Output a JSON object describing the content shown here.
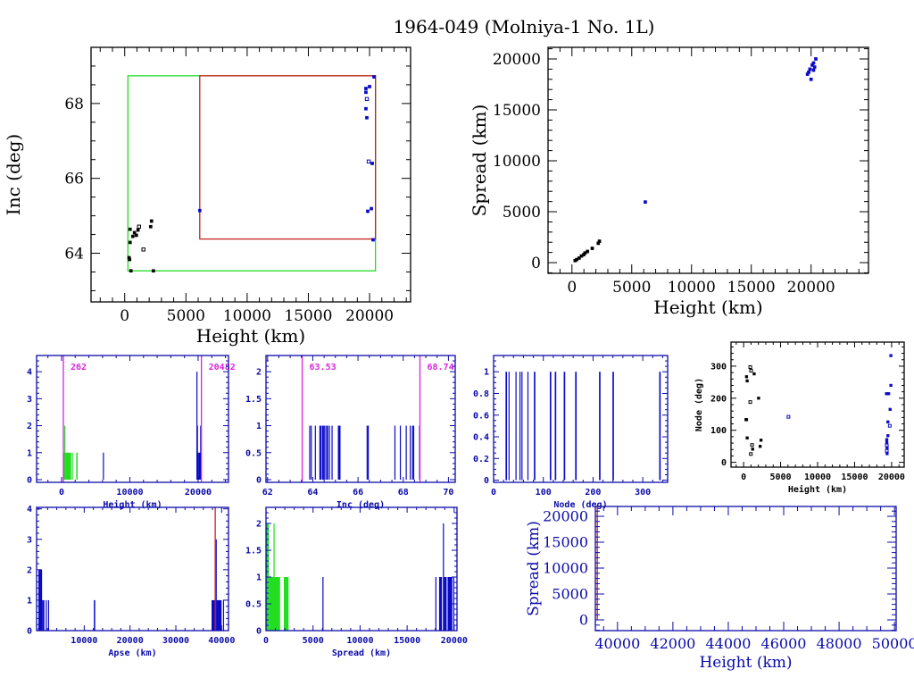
{
  "title": "1964-049 (Molniya-1 No. 1L)",
  "colors": {
    "k": "#000000",
    "b": "#0a0ac8",
    "g": "#22dd22",
    "r": "#c82020",
    "m": "#dd22dd",
    "axis_small": "#0a0aaa"
  },
  "chart_data": [
    {
      "id": "inc-vs-height",
      "type": "scatter",
      "xlabel": "Height (km)",
      "ylabel": "Inc (deg)",
      "xlim": [
        -2750,
        23350
      ],
      "ylim": [
        62.7,
        69.5
      ],
      "xticks": [
        0,
        5000,
        10000,
        15000,
        20000
      ],
      "xtick_labels": [
        "0",
        "5000",
        "10000",
        "15000",
        "20000"
      ],
      "xminor": 1000,
      "yticks": [
        64,
        66,
        68
      ],
      "ytick_labels": [
        "64",
        "66",
        "68"
      ],
      "yminor": 0.5,
      "rects": [
        {
          "x0": 262,
          "x1": 20482,
          "y0": 63.53,
          "y1": 68.74,
          "color": "g"
        },
        {
          "x0": 6130,
          "x1": 20482,
          "y0": 64.38,
          "y1": 68.74,
          "color": "r"
        }
      ],
      "points": [
        [
          440,
          64.64,
          "k",
          0
        ],
        [
          800,
          64.55,
          "k",
          0
        ],
        [
          660,
          64.45,
          "k",
          0
        ],
        [
          950,
          64.48,
          "k",
          0
        ],
        [
          1090,
          64.62,
          "k",
          0
        ],
        [
          1170,
          64.71,
          "k",
          1
        ],
        [
          2120,
          64.71,
          "k",
          0
        ],
        [
          2190,
          64.86,
          "k",
          0
        ],
        [
          1530,
          64.1,
          "k",
          1
        ],
        [
          440,
          64.29,
          "k",
          0
        ],
        [
          360,
          63.88,
          "k",
          0
        ],
        [
          400,
          63.83,
          "k",
          0
        ],
        [
          510,
          63.53,
          "k",
          0
        ],
        [
          2340,
          63.53,
          "k",
          0
        ],
        [
          6130,
          65.14,
          "b",
          0
        ],
        [
          20360,
          68.71,
          "b",
          0
        ],
        [
          20000,
          68.45,
          "b",
          0
        ],
        [
          19700,
          68.4,
          "b",
          0
        ],
        [
          19700,
          68.3,
          "b",
          0
        ],
        [
          19780,
          68.12,
          "b",
          1
        ],
        [
          19700,
          67.86,
          "b",
          0
        ],
        [
          19780,
          67.62,
          "b",
          0
        ],
        [
          19930,
          66.45,
          "b",
          1
        ],
        [
          20220,
          66.4,
          "b",
          0
        ],
        [
          19850,
          65.12,
          "b",
          0
        ],
        [
          20150,
          65.19,
          "b",
          0
        ],
        [
          20290,
          64.36,
          "b",
          0
        ]
      ]
    },
    {
      "id": "spread-vs-height",
      "type": "scatter",
      "xlabel": "Height (km)",
      "ylabel": "Spread (km)",
      "xlim": [
        -2000,
        24800
      ],
      "ylim": [
        -1050,
        21140
      ],
      "xticks": [
        0,
        5000,
        10000,
        15000,
        20000
      ],
      "xtick_labels": [
        "0",
        "5000",
        "10000",
        "15000",
        "20000"
      ],
      "xminor": 1000,
      "yticks": [
        0,
        5000,
        10000,
        15000,
        20000
      ],
      "ytick_labels": [
        "0",
        "5000",
        "10000",
        "15000",
        "20000"
      ],
      "yminor": 1000,
      "points": [
        [
          262,
          200,
          "k",
          0
        ],
        [
          400,
          300,
          "k",
          0
        ],
        [
          600,
          450,
          "k",
          0
        ],
        [
          800,
          650,
          "k",
          0
        ],
        [
          1000,
          800,
          "k",
          0
        ],
        [
          1100,
          950,
          "k",
          0
        ],
        [
          1300,
          1100,
          "k",
          0
        ],
        [
          1700,
          1400,
          "k",
          0
        ],
        [
          2200,
          1900,
          "k",
          0
        ],
        [
          2300,
          2100,
          "k",
          0
        ],
        [
          6130,
          5950,
          "b",
          0
        ],
        [
          19800,
          18700,
          "b",
          0
        ],
        [
          19900,
          19000,
          "b",
          0
        ],
        [
          20100,
          19400,
          "b",
          0
        ],
        [
          20000,
          18000,
          "b",
          0
        ],
        [
          20200,
          19600,
          "b",
          0
        ],
        [
          20400,
          20000,
          "b",
          0
        ],
        [
          19700,
          18500,
          "b",
          0
        ],
        [
          20300,
          19200,
          "b",
          0
        ],
        [
          20200,
          18900,
          "b",
          0
        ]
      ]
    },
    {
      "id": "height-histogram",
      "type": "bar",
      "xlabel": "Height (km)",
      "ylabel": "",
      "xlim": [
        -3660,
        24450
      ],
      "ylim": [
        -0.1,
        4.6
      ],
      "xticks": [
        0,
        10000,
        20000
      ],
      "xtick_labels": [
        "0",
        "10000",
        "20000"
      ],
      "xminor": 2000,
      "yticks": [
        0,
        1,
        2,
        3,
        4
      ],
      "ytick_labels": [
        "0",
        "1",
        "2",
        "3",
        "4"
      ],
      "yminor": 0.2,
      "bars": [
        [
          262,
          550,
          1,
          "g"
        ],
        [
          400,
          520,
          2,
          "g"
        ],
        [
          550,
          1400,
          1,
          "g"
        ],
        [
          1500,
          1580,
          1,
          "g"
        ],
        [
          2150,
          2350,
          1,
          "g"
        ],
        [
          6050,
          6200,
          1,
          "b"
        ],
        [
          19750,
          19820,
          4,
          "b"
        ],
        [
          19820,
          19900,
          2,
          "b"
        ],
        [
          19900,
          20050,
          1,
          "b"
        ],
        [
          20050,
          20350,
          1,
          "b"
        ],
        [
          20300,
          20380,
          2,
          "b"
        ]
      ],
      "vlines": [
        {
          "x": 262,
          "color": "m",
          "label": "262"
        },
        {
          "x": 20482,
          "color": "m",
          "label": "20482"
        }
      ]
    },
    {
      "id": "inc-histogram",
      "type": "bar",
      "xlabel": "Inc (deg)",
      "ylabel": "",
      "xlim": [
        61.93,
        70.3
      ],
      "ylim": [
        -0.05,
        2.3
      ],
      "xticks": [
        62,
        64,
        66,
        68,
        70
      ],
      "xtick_labels": [
        "62",
        "64",
        "66",
        "68",
        "70"
      ],
      "xminor": 0.5,
      "yticks": [
        0,
        0.5,
        1,
        1.5,
        2
      ],
      "ytick_labels": [
        "0",
        "0.5",
        "1",
        "1.5",
        "2"
      ],
      "yminor": 0.1,
      "bars": [
        [
          63.84,
          63.87,
          1,
          "b"
        ],
        [
          63.91,
          63.94,
          1,
          "b"
        ],
        [
          64.09,
          64.12,
          1,
          "b"
        ],
        [
          64.29,
          64.33,
          1,
          "b"
        ],
        [
          64.34,
          64.38,
          1,
          "b"
        ],
        [
          64.41,
          64.44,
          1,
          "b"
        ],
        [
          64.46,
          64.49,
          1,
          "b"
        ],
        [
          64.51,
          64.54,
          1,
          "b"
        ],
        [
          64.59,
          64.62,
          1,
          "b"
        ],
        [
          64.63,
          64.66,
          1,
          "b"
        ],
        [
          64.71,
          64.74,
          1,
          "b"
        ],
        [
          64.83,
          64.86,
          1,
          "b"
        ],
        [
          65.11,
          65.15,
          1,
          "b"
        ],
        [
          65.14,
          65.17,
          1,
          "b"
        ],
        [
          65.18,
          65.21,
          1,
          "b"
        ],
        [
          66.38,
          66.42,
          1,
          "b"
        ],
        [
          66.43,
          66.47,
          1,
          "b"
        ],
        [
          67.61,
          67.64,
          1,
          "b"
        ],
        [
          67.85,
          67.88,
          1,
          "b"
        ],
        [
          68.11,
          68.14,
          1,
          "b"
        ],
        [
          68.29,
          68.32,
          1,
          "b"
        ],
        [
          68.39,
          68.42,
          1,
          "b"
        ],
        [
          68.44,
          68.47,
          1,
          "b"
        ],
        [
          68.7,
          68.73,
          1,
          "b"
        ]
      ],
      "vlines": [
        {
          "x": 63.53,
          "color": "m",
          "label": "63.53"
        },
        {
          "x": 68.74,
          "color": "m",
          "label": "68.74"
        }
      ]
    },
    {
      "id": "node-histogram",
      "type": "bar",
      "xlabel": "Node (deg)",
      "ylabel": "",
      "xlim": [
        0,
        350
      ],
      "ylim": [
        -0.02,
        1.15
      ],
      "xticks": [
        0,
        100,
        200,
        300
      ],
      "xtick_labels": [
        "0",
        "100",
        "200",
        "300"
      ],
      "xminor": 20,
      "yticks": [
        0,
        0.2,
        0.4,
        0.6,
        0.8,
        1
      ],
      "ytick_labels": [
        "0",
        "0.2",
        "0.4",
        "0.6",
        "0.8",
        "1"
      ],
      "yminor": 0.05,
      "bars": [
        [
          24,
          27,
          1,
          "b"
        ],
        [
          30,
          32,
          1,
          "b"
        ],
        [
          44,
          46,
          1,
          "b"
        ],
        [
          52,
          54,
          1,
          "b"
        ],
        [
          56,
          58,
          1,
          "b"
        ],
        [
          68,
          70,
          1,
          "b"
        ],
        [
          81,
          84,
          1,
          "b"
        ],
        [
          113,
          116,
          1,
          "b"
        ],
        [
          123,
          126,
          1,
          "b"
        ],
        [
          141,
          144,
          1,
          "b"
        ],
        [
          164,
          167,
          1,
          "b"
        ],
        [
          212,
          215,
          1,
          "b"
        ],
        [
          239,
          242,
          1,
          "b"
        ],
        [
          333,
          336,
          1,
          "b"
        ]
      ]
    },
    {
      "id": "node-vs-height",
      "type": "scatter",
      "xlabel": "Height (km)",
      "ylabel": "Node (deg)",
      "xlim": [
        -1700,
        21700
      ],
      "ylim": [
        -15,
        375
      ],
      "xticks": [
        0,
        5000,
        10000,
        15000,
        20000
      ],
      "xtick_labels": [
        "0",
        "5000",
        "10000",
        "15000",
        "20000"
      ],
      "xminor": 1000,
      "yticks": [
        0,
        100,
        200,
        300
      ],
      "ytick_labels": [
        "0",
        "100",
        "200",
        "300"
      ],
      "yminor": 20,
      "points": [
        [
          325,
          133,
          "k",
          0
        ],
        [
          400,
          133,
          "k",
          0
        ],
        [
          900,
          297,
          "k",
          1
        ],
        [
          1016,
          286,
          "k",
          1
        ],
        [
          400,
          267,
          "k",
          0
        ],
        [
          480,
          254,
          "k",
          0
        ],
        [
          1430,
          276,
          "k",
          0
        ],
        [
          2030,
          200,
          "k",
          0
        ],
        [
          900,
          188,
          "k",
          1
        ],
        [
          480,
          76,
          "k",
          0
        ],
        [
          1140,
          54,
          "k",
          1
        ],
        [
          1220,
          41,
          "k",
          0
        ],
        [
          980,
          26,
          "k",
          1
        ],
        [
          2230,
          50,
          "k",
          0
        ],
        [
          2350,
          69,
          "k",
          0
        ],
        [
          6060,
          142,
          "b",
          1
        ],
        [
          19300,
          214,
          "b",
          0
        ],
        [
          19600,
          214,
          "b",
          0
        ],
        [
          19900,
          333,
          "b",
          0
        ],
        [
          19900,
          240,
          "b",
          0
        ],
        [
          19800,
          165,
          "b",
          0
        ],
        [
          19500,
          126,
          "b",
          0
        ],
        [
          19750,
          114,
          "b",
          1
        ],
        [
          19500,
          83,
          "b",
          0
        ],
        [
          19350,
          71,
          "b",
          0
        ],
        [
          19350,
          62,
          "b",
          0
        ],
        [
          19350,
          53,
          "b",
          1
        ],
        [
          19400,
          45,
          "b",
          0
        ],
        [
          19350,
          36,
          "b",
          1
        ],
        [
          19400,
          27,
          "b",
          0
        ]
      ]
    },
    {
      "id": "apse-histogram",
      "type": "bar",
      "xlabel": "Apse (km)",
      "ylabel": "",
      "xlim": [
        -400,
        41500
      ],
      "ylim": [
        0,
        4.05
      ],
      "xticks": [
        10000,
        20000,
        30000,
        40000
      ],
      "xtick_labels": [
        "10000",
        "20000",
        "30000",
        "40000"
      ],
      "xminor": 2000,
      "yticks": [
        0,
        1,
        2,
        3,
        4
      ],
      "ytick_labels": [
        "0",
        "1",
        "2",
        "3",
        "4"
      ],
      "yminor": 0.2,
      "bars": [
        [
          0,
          800,
          2,
          "b"
        ],
        [
          800,
          1300,
          1,
          "b"
        ],
        [
          1600,
          1700,
          1,
          "b"
        ],
        [
          2100,
          2200,
          1,
          "b"
        ],
        [
          12100,
          12400,
          1,
          "b"
        ],
        [
          37800,
          38500,
          1,
          "b"
        ],
        [
          38500,
          38700,
          1,
          "b"
        ],
        [
          38700,
          38900,
          3,
          "b"
        ],
        [
          38900,
          40000,
          1,
          "b"
        ],
        [
          40300,
          40400,
          1,
          "b"
        ]
      ],
      "vlines": [
        {
          "x": 38600,
          "color": "r",
          "label": ""
        }
      ]
    },
    {
      "id": "spread-histogram",
      "type": "bar",
      "xlabel": "Spread (km)",
      "ylabel": "",
      "xlim": [
        0,
        20300
      ],
      "ylim": [
        0,
        2.3
      ],
      "xticks": [
        0,
        5000,
        10000,
        15000,
        20000
      ],
      "xtick_labels": [
        "0",
        "5000",
        "10000",
        "15000",
        "20000"
      ],
      "xminor": 1000,
      "yticks": [
        0,
        0.5,
        1,
        1.5,
        2
      ],
      "ytick_labels": [
        "0",
        "0.5",
        "1",
        "1.5",
        "2"
      ],
      "yminor": 0.1,
      "bars": [
        [
          0,
          300,
          2,
          "g"
        ],
        [
          300,
          1500,
          1,
          "g"
        ],
        [
          800,
          880,
          2,
          "g"
        ],
        [
          1900,
          2400,
          1,
          "g"
        ],
        [
          6000,
          6100,
          1,
          "b"
        ],
        [
          18000,
          18050,
          1,
          "b"
        ],
        [
          18400,
          18700,
          1,
          "b"
        ],
        [
          18800,
          18850,
          2,
          "b"
        ],
        [
          18900,
          19200,
          1,
          "b"
        ],
        [
          19300,
          19800,
          1,
          "b"
        ],
        [
          19900,
          19950,
          1,
          "b"
        ]
      ]
    },
    {
      "id": "spread-vs-height-zoom",
      "type": "scatter",
      "xlabel": "Height (km)",
      "ylabel": "Spread (km)",
      "xlim": [
        39200,
        50060
      ],
      "ylim": [
        -2070,
        21900
      ],
      "xticks": [
        40000,
        42000,
        44000,
        46000,
        48000,
        50000
      ],
      "xtick_labels": [
        "40000",
        "42000",
        "44000",
        "46000",
        "48000",
        "50000"
      ],
      "xminor": 500,
      "yticks": [
        0,
        5000,
        10000,
        15000,
        20000
      ],
      "ytick_labels": [
        "0",
        "5000",
        "10000",
        "15000",
        "20000"
      ],
      "yminor": 1000,
      "points": [],
      "vlines": [
        {
          "x": 39270,
          "color": "r",
          "label": "",
          "from": 0
        }
      ]
    }
  ]
}
